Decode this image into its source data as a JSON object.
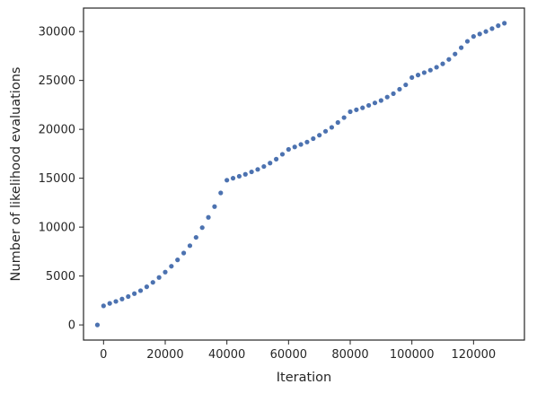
{
  "chart_data": {
    "type": "scatter",
    "title": "",
    "xlabel": "Iteration",
    "ylabel": "Number of likelihood evaluations",
    "xlim": [
      -6500,
      136500
    ],
    "ylim": [
      -1550,
      32400
    ],
    "xticks": [
      0,
      20000,
      40000,
      60000,
      80000,
      100000,
      120000
    ],
    "yticks": [
      0,
      5000,
      10000,
      15000,
      20000,
      25000,
      30000
    ],
    "xtick_labels": [
      "0",
      "20000",
      "40000",
      "60000",
      "80000",
      "100000",
      "120000"
    ],
    "ytick_labels": [
      "0",
      "5000",
      "10000",
      "15000",
      "20000",
      "25000",
      "30000"
    ],
    "grid": false,
    "marker_color": "#4c72b0",
    "series": [
      {
        "x": [
          -2000,
          0,
          2000,
          4000,
          6000,
          8000,
          10000,
          12000,
          14000,
          16000,
          18000,
          20000,
          22000,
          24000,
          26000,
          28000,
          30000,
          32000,
          34000,
          36000,
          38000,
          40000,
          42000,
          44000,
          46000,
          48000,
          50000,
          52000,
          54000,
          56000,
          58000,
          60000,
          62000,
          64000,
          66000,
          68000,
          70000,
          72000,
          74000,
          76000,
          78000,
          80000,
          82000,
          84000,
          86000,
          88000,
          90000,
          92000,
          94000,
          96000,
          98000,
          100000,
          102000,
          104000,
          106000,
          108000,
          110000,
          112000,
          114000,
          116000,
          118000,
          120000,
          122000,
          124000,
          126000,
          128000,
          130000
        ],
        "y": [
          0,
          1950,
          2200,
          2400,
          2650,
          2900,
          3200,
          3500,
          3900,
          4350,
          4850,
          5400,
          6000,
          6650,
          7350,
          8100,
          8950,
          9950,
          11000,
          12100,
          13500,
          14800,
          15000,
          15200,
          15400,
          15650,
          15900,
          16200,
          16550,
          16950,
          17450,
          17950,
          18200,
          18450,
          18700,
          19050,
          19400,
          19800,
          20200,
          20700,
          21200,
          21800,
          22000,
          22200,
          22450,
          22700,
          22950,
          23300,
          23650,
          24100,
          24550,
          25300,
          25550,
          25800,
          26050,
          26350,
          26700,
          27150,
          27700,
          28350,
          29000,
          29500,
          29750,
          30000,
          30300,
          30600,
          30850
        ]
      }
    ]
  }
}
